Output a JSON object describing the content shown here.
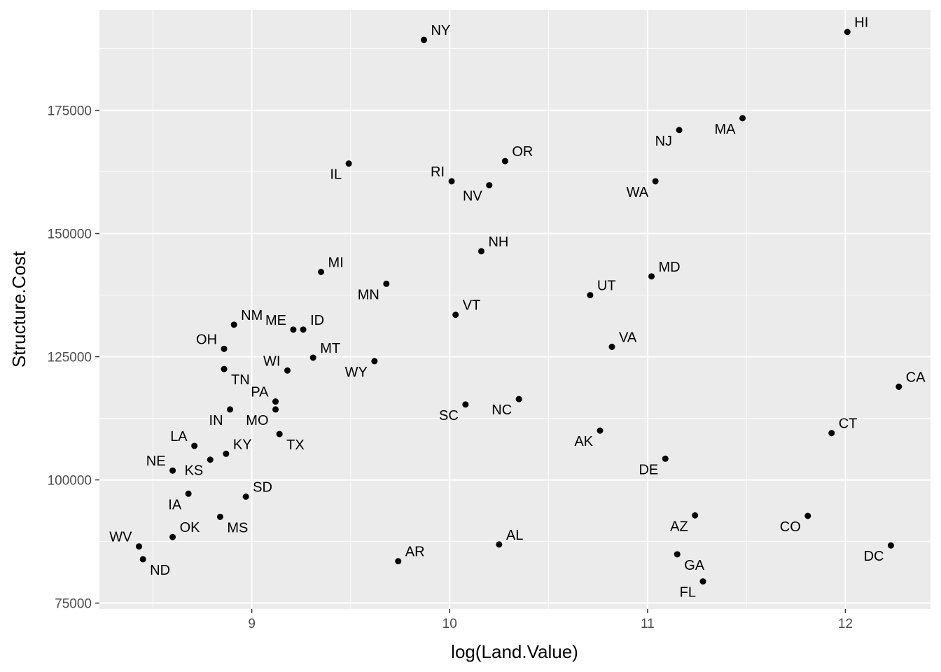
{
  "chart_data": {
    "type": "scatter",
    "title": "",
    "xlabel": "log(Land.Value)",
    "ylabel": "Structure.Cost",
    "xlim": [
      8.23,
      12.43
    ],
    "ylim": [
      73800,
      195400
    ],
    "x_ticks": [
      9,
      10,
      11,
      12
    ],
    "x_tick_labels": [
      "9",
      "10",
      "11",
      "12"
    ],
    "y_ticks": [
      75000,
      100000,
      125000,
      150000,
      175000
    ],
    "y_tick_labels": [
      "75000",
      "100000",
      "125000",
      "150000",
      "175000"
    ],
    "grid": true,
    "legend": "none",
    "colors": {
      "panel": "#ebebeb",
      "grid": "#ffffff",
      "point": "#000000",
      "tick_text": "#4d4d4d"
    },
    "points": [
      {
        "label": "NY",
        "x": 9.87,
        "y": 189300,
        "pos": "ur"
      },
      {
        "label": "HI",
        "x": 12.01,
        "y": 190900,
        "pos": "ur"
      },
      {
        "label": "MA",
        "x": 11.48,
        "y": 173400,
        "pos": "bl"
      },
      {
        "label": "NJ",
        "x": 11.16,
        "y": 171000,
        "pos": "bl"
      },
      {
        "label": "OR",
        "x": 10.28,
        "y": 164700,
        "pos": "ur"
      },
      {
        "label": "IL",
        "x": 9.49,
        "y": 164200,
        "pos": "bl"
      },
      {
        "label": "RI",
        "x": 10.01,
        "y": 160600,
        "pos": "ul"
      },
      {
        "label": "WA",
        "x": 11.04,
        "y": 160600,
        "pos": "bl"
      },
      {
        "label": "NV",
        "x": 10.2,
        "y": 159800,
        "pos": "bl"
      },
      {
        "label": "NH",
        "x": 10.16,
        "y": 146400,
        "pos": "ur"
      },
      {
        "label": "MI",
        "x": 9.35,
        "y": 142200,
        "pos": "ur"
      },
      {
        "label": "MD",
        "x": 11.02,
        "y": 141300,
        "pos": "ur"
      },
      {
        "label": "MN",
        "x": 9.68,
        "y": 139800,
        "pos": "bl"
      },
      {
        "label": "UT",
        "x": 10.71,
        "y": 137500,
        "pos": "ur"
      },
      {
        "label": "VT",
        "x": 10.03,
        "y": 133500,
        "pos": "ur"
      },
      {
        "label": "NM",
        "x": 8.91,
        "y": 131500,
        "pos": "ur"
      },
      {
        "label": "ME",
        "x": 9.21,
        "y": 130500,
        "pos": "ul"
      },
      {
        "label": "ID",
        "x": 9.26,
        "y": 130500,
        "pos": "ur"
      },
      {
        "label": "VA",
        "x": 10.82,
        "y": 127000,
        "pos": "ur"
      },
      {
        "label": "OH",
        "x": 8.86,
        "y": 126600,
        "pos": "ul"
      },
      {
        "label": "MT",
        "x": 9.31,
        "y": 124800,
        "pos": "ur"
      },
      {
        "label": "WY",
        "x": 9.62,
        "y": 124100,
        "pos": "bl"
      },
      {
        "label": "TN",
        "x": 8.86,
        "y": 122500,
        "pos": "br"
      },
      {
        "label": "WI",
        "x": 9.18,
        "y": 122200,
        "pos": "ul"
      },
      {
        "label": "CA",
        "x": 12.27,
        "y": 118900,
        "pos": "ur"
      },
      {
        "label": "NC",
        "x": 10.35,
        "y": 116400,
        "pos": "bl"
      },
      {
        "label": "PA",
        "x": 9.12,
        "y": 115900,
        "pos": "ul"
      },
      {
        "label": "SC",
        "x": 10.08,
        "y": 115300,
        "pos": "bl"
      },
      {
        "label": "IN",
        "x": 8.89,
        "y": 114300,
        "pos": "bl"
      },
      {
        "label": "MO",
        "x": 9.12,
        "y": 114300,
        "pos": "bl"
      },
      {
        "label": "AK",
        "x": 10.76,
        "y": 110000,
        "pos": "bl"
      },
      {
        "label": "CT",
        "x": 11.93,
        "y": 109500,
        "pos": "ur"
      },
      {
        "label": "TX",
        "x": 9.14,
        "y": 109300,
        "pos": "br"
      },
      {
        "label": "LA",
        "x": 8.71,
        "y": 106900,
        "pos": "ul"
      },
      {
        "label": "KY",
        "x": 8.87,
        "y": 105300,
        "pos": "ur"
      },
      {
        "label": "DE",
        "x": 11.09,
        "y": 104300,
        "pos": "bl"
      },
      {
        "label": "KS",
        "x": 8.79,
        "y": 104100,
        "pos": "bl"
      },
      {
        "label": "NE",
        "x": 8.6,
        "y": 101900,
        "pos": "ul"
      },
      {
        "label": "IA",
        "x": 8.68,
        "y": 97200,
        "pos": "bl"
      },
      {
        "label": "SD",
        "x": 8.97,
        "y": 96600,
        "pos": "ur"
      },
      {
        "label": "AZ",
        "x": 11.24,
        "y": 92800,
        "pos": "bl"
      },
      {
        "label": "CO",
        "x": 11.81,
        "y": 92700,
        "pos": "bl"
      },
      {
        "label": "MS",
        "x": 8.84,
        "y": 92500,
        "pos": "br"
      },
      {
        "label": "OK",
        "x": 8.6,
        "y": 88400,
        "pos": "ur"
      },
      {
        "label": "AL",
        "x": 10.25,
        "y": 86900,
        "pos": "ur"
      },
      {
        "label": "DC",
        "x": 12.23,
        "y": 86700,
        "pos": "bl"
      },
      {
        "label": "WV",
        "x": 8.43,
        "y": 86500,
        "pos": "ul"
      },
      {
        "label": "GA",
        "x": 11.15,
        "y": 84900,
        "pos": "br"
      },
      {
        "label": "ND",
        "x": 8.45,
        "y": 83900,
        "pos": "br"
      },
      {
        "label": "AR",
        "x": 9.74,
        "y": 83500,
        "pos": "ur"
      },
      {
        "label": "FL",
        "x": 11.28,
        "y": 79400,
        "pos": "bl"
      }
    ]
  }
}
